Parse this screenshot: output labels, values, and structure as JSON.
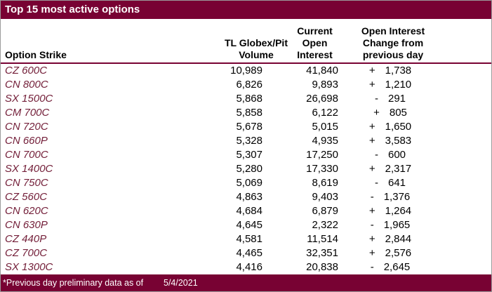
{
  "title": "Top 15 most active options",
  "colors": {
    "maroon": "#780233",
    "strike_text": "#74203A",
    "frame_border": "#9B9B9B",
    "header_text": "#000000",
    "title_text": "#FFFFFF"
  },
  "table": {
    "columns": {
      "strike": {
        "label": "Option Strike"
      },
      "volume": {
        "lines": [
          "TL Globex/Pit",
          "Volume"
        ]
      },
      "open_interest": {
        "lines": [
          "Current",
          "Open",
          "Interest"
        ]
      },
      "change": {
        "lines": [
          "Open Interest",
          "Change from",
          "previous day"
        ]
      }
    },
    "rows": [
      {
        "strike": "CZ 600C",
        "volume": "10,989",
        "open_interest": "41,840",
        "change_sign": "+",
        "change_value": "1,738"
      },
      {
        "strike": "CN 800C",
        "volume": "6,826",
        "open_interest": "9,893",
        "change_sign": "+",
        "change_value": "1,210"
      },
      {
        "strike": "SX 1500C",
        "volume": "5,868",
        "open_interest": "26,698",
        "change_sign": "-",
        "change_value": "291"
      },
      {
        "strike": "CM 700C",
        "volume": "5,858",
        "open_interest": "6,122",
        "change_sign": "+",
        "change_value": "805"
      },
      {
        "strike": "CN 720C",
        "volume": "5,678",
        "open_interest": "5,015",
        "change_sign": "+",
        "change_value": "1,650"
      },
      {
        "strike": "CN 660P",
        "volume": "5,328",
        "open_interest": "4,935",
        "change_sign": "+",
        "change_value": "3,583"
      },
      {
        "strike": "CN 700C",
        "volume": "5,307",
        "open_interest": "17,250",
        "change_sign": "-",
        "change_value": "600"
      },
      {
        "strike": "SX 1400C",
        "volume": "5,280",
        "open_interest": "17,330",
        "change_sign": "+",
        "change_value": "2,317"
      },
      {
        "strike": "CN 750C",
        "volume": "5,069",
        "open_interest": "8,619",
        "change_sign": "-",
        "change_value": "641"
      },
      {
        "strike": "CZ 560C",
        "volume": "4,863",
        "open_interest": "9,403",
        "change_sign": "-",
        "change_value": "1,376"
      },
      {
        "strike": "CN 620C",
        "volume": "4,684",
        "open_interest": "6,879",
        "change_sign": "+",
        "change_value": "1,264"
      },
      {
        "strike": "CN 630P",
        "volume": "4,645",
        "open_interest": "2,322",
        "change_sign": "-",
        "change_value": "1,965"
      },
      {
        "strike": "CZ 440P",
        "volume": "4,581",
        "open_interest": "11,514",
        "change_sign": "+",
        "change_value": "2,844"
      },
      {
        "strike": "CZ 700C",
        "volume": "4,465",
        "open_interest": "32,351",
        "change_sign": "+",
        "change_value": "2,576"
      },
      {
        "strike": "SX 1300C",
        "volume": "4,416",
        "open_interest": "20,838",
        "change_sign": "-",
        "change_value": "2,645"
      }
    ]
  },
  "footer": {
    "note": "*Previous day preliminary data as of",
    "date": "5/4/2021"
  }
}
